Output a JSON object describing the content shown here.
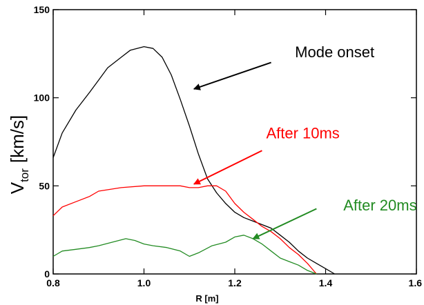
{
  "chart_data": {
    "type": "line",
    "xlabel": "R [m]",
    "ylabel_main": "V",
    "ylabel_sub": "tor",
    "ylabel_unit": "[km/s]",
    "xlim": [
      0.8,
      1.6
    ],
    "ylim": [
      0,
      150
    ],
    "xticks": [
      0.8,
      1.0,
      1.2,
      1.4,
      1.6
    ],
    "xtick_labels": [
      "0.8",
      "1.0",
      "1.2",
      "1.4",
      "1.6"
    ],
    "yticks": [
      0,
      50,
      100,
      150
    ],
    "ytick_labels": [
      "0",
      "50",
      "100",
      "150"
    ],
    "grid": false,
    "series": [
      {
        "color": "#000000",
        "x": [
          0.8,
          0.82,
          0.85,
          0.88,
          0.9,
          0.92,
          0.95,
          0.97,
          1.0,
          1.02,
          1.04,
          1.06,
          1.08,
          1.1,
          1.12,
          1.14,
          1.16,
          1.18,
          1.2,
          1.22,
          1.24,
          1.26,
          1.28,
          1.3,
          1.32,
          1.34,
          1.36,
          1.38,
          1.4,
          1.42
        ],
        "y": [
          66,
          80,
          93,
          103,
          110,
          117,
          123,
          127,
          129,
          128,
          123,
          113,
          99,
          84,
          68,
          54,
          46,
          40,
          35,
          32,
          30,
          28,
          26,
          22,
          18,
          13,
          9,
          6,
          3,
          0
        ]
      },
      {
        "color": "#ff0000",
        "x": [
          0.8,
          0.82,
          0.85,
          0.88,
          0.9,
          0.95,
          1.0,
          1.05,
          1.08,
          1.1,
          1.12,
          1.14,
          1.16,
          1.18,
          1.2,
          1.22,
          1.24,
          1.26,
          1.28,
          1.3,
          1.32,
          1.34,
          1.36,
          1.38
        ],
        "y": [
          33,
          38,
          41,
          44,
          47,
          49,
          50,
          50,
          50,
          49,
          49,
          50,
          50,
          47,
          40,
          35,
          31,
          27,
          24,
          20,
          15,
          11,
          6,
          0
        ]
      },
      {
        "color": "#228b22",
        "x": [
          0.8,
          0.82,
          0.85,
          0.88,
          0.9,
          0.93,
          0.96,
          0.98,
          1.0,
          1.02,
          1.05,
          1.08,
          1.1,
          1.12,
          1.15,
          1.18,
          1.2,
          1.22,
          1.24,
          1.26,
          1.28,
          1.3,
          1.32,
          1.34,
          1.36,
          1.38
        ],
        "y": [
          10,
          13,
          14,
          15,
          16,
          18,
          20,
          19,
          17,
          16,
          15,
          13,
          10,
          12,
          16,
          18,
          21,
          22,
          20,
          17,
          13,
          9,
          7,
          5,
          2,
          0
        ]
      }
    ],
    "annotations": [
      {
        "text": "Mode onset",
        "color": "#000000",
        "x": 1.42,
        "y": 123,
        "arrow_from": [
          1.28,
          120
        ],
        "arrow_to": [
          1.11,
          105
        ]
      },
      {
        "text": "After 10ms",
        "color": "#ff0000",
        "x": 1.35,
        "y": 77,
        "arrow_from": [
          1.26,
          70
        ],
        "arrow_to": [
          1.11,
          51
        ]
      },
      {
        "text": "After 20ms",
        "color": "#228b22",
        "x": 1.52,
        "y": 36,
        "arrow_from": [
          1.38,
          37
        ],
        "arrow_to": [
          1.24,
          20
        ]
      }
    ]
  }
}
